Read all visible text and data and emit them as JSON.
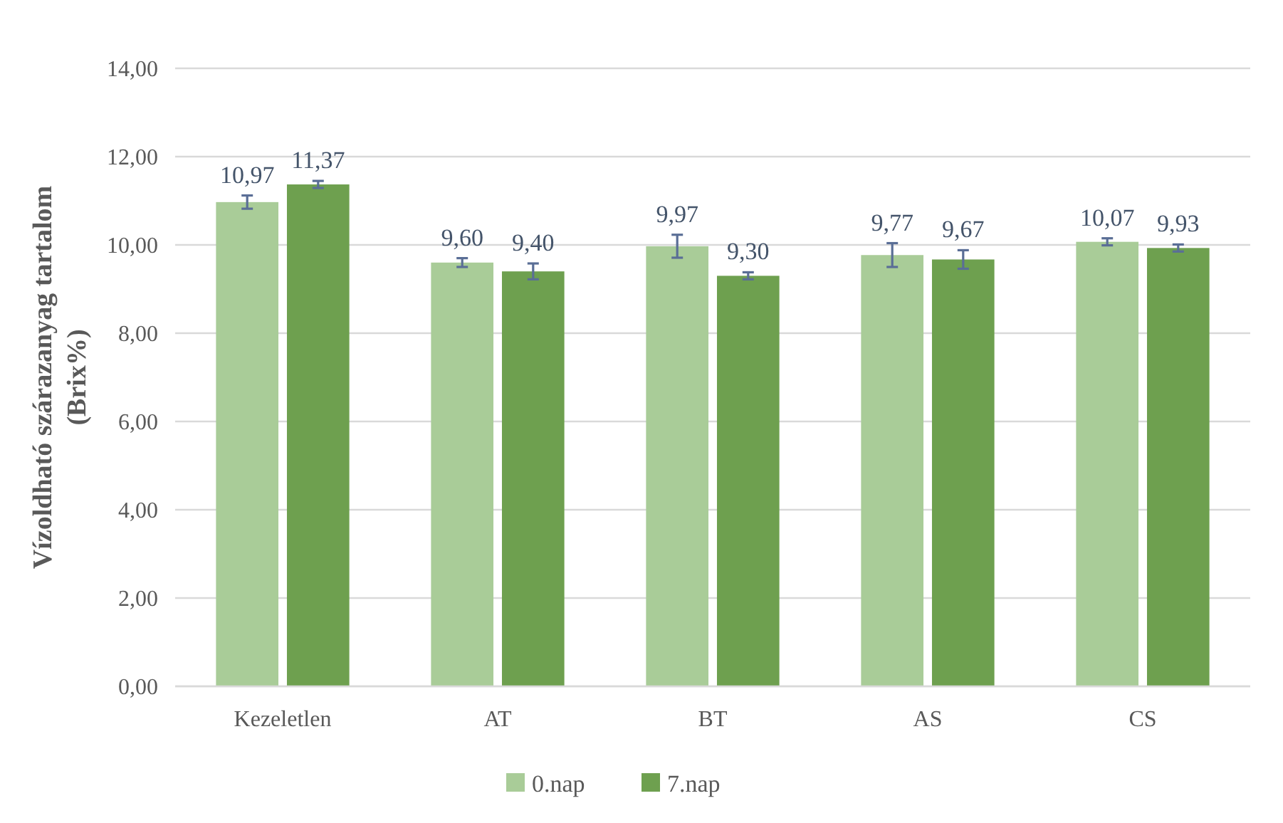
{
  "chart_data": {
    "type": "bar",
    "ylabel": "Vízoldható szárazanyag tartalom (Brix%)",
    "categories": [
      "Kezeletlen",
      "AT",
      "BT",
      "AS",
      "CS"
    ],
    "series": [
      {
        "name": "0.nap",
        "color": "#a9cc98",
        "values": [
          10.97,
          9.6,
          9.97,
          9.77,
          10.07
        ],
        "errors": [
          0.15,
          0.1,
          0.26,
          0.27,
          0.08
        ],
        "value_labels": [
          "10,97",
          "9,60",
          "9,97",
          "9,77",
          "10,07"
        ]
      },
      {
        "name": "7.nap",
        "color": "#6ea04f",
        "values": [
          11.37,
          9.4,
          9.3,
          9.67,
          9.93
        ],
        "errors": [
          0.08,
          0.18,
          0.08,
          0.21,
          0.08
        ],
        "value_labels": [
          "11,37",
          "9,40",
          "9,30",
          "9,67",
          "9,93"
        ]
      }
    ],
    "ylim": [
      0,
      14
    ],
    "yticks": [
      {
        "value": 0,
        "label": "0,00"
      },
      {
        "value": 2,
        "label": "2,00"
      },
      {
        "value": 4,
        "label": "4,00"
      },
      {
        "value": 6,
        "label": "6,00"
      },
      {
        "value": 8,
        "label": "8,00"
      },
      {
        "value": 10,
        "label": "10,00"
      },
      {
        "value": 12,
        "label": "12,00"
      },
      {
        "value": 14,
        "label": "14,00"
      }
    ],
    "grid": "y",
    "legend": "bottom"
  }
}
